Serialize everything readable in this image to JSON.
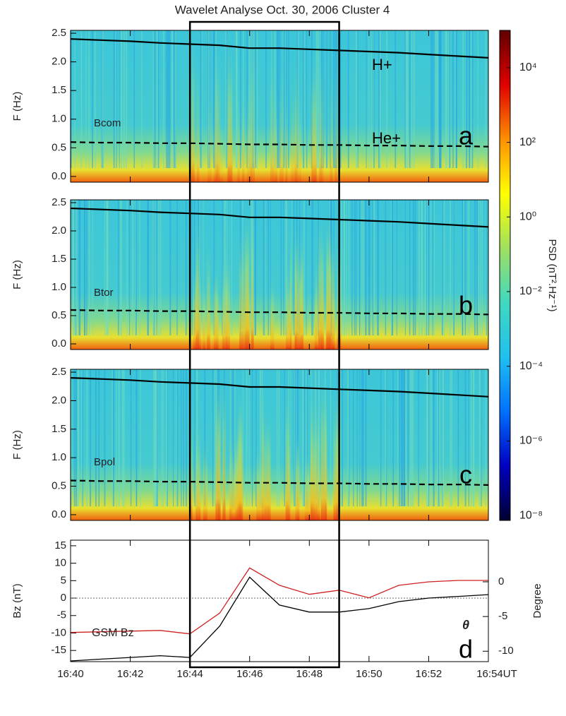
{
  "title": "Wavelet Analyse   Oct. 30, 2006   Cluster 4",
  "chart_data": [
    {
      "type": "spectrogram",
      "panel_label": "a",
      "component": "Bcom",
      "ylabel": "F (Hz)",
      "annotations": [
        "H+",
        "He+"
      ],
      "x": [
        "16:40",
        "16:41",
        "16:42",
        "16:43",
        "16:44",
        "16:45",
        "16:46",
        "16:47",
        "16:48",
        "16:49",
        "16:50",
        "16:51",
        "16:52",
        "16:53",
        "16:54"
      ],
      "series": [
        {
          "name": "H+",
          "color": "#000000",
          "style": "solid",
          "values": [
            2.4,
            2.38,
            2.36,
            2.33,
            2.31,
            2.29,
            2.24,
            2.24,
            2.22,
            2.2,
            2.18,
            2.16,
            2.13,
            2.1,
            2.07
          ]
        },
        {
          "name": "He+",
          "color": "#000000",
          "style": "dashed",
          "values": [
            0.6,
            0.59,
            0.59,
            0.58,
            0.58,
            0.57,
            0.56,
            0.56,
            0.55,
            0.55,
            0.54,
            0.54,
            0.53,
            0.53,
            0.52
          ]
        }
      ],
      "ylim": [
        -0.1,
        2.55
      ],
      "yticks": [
        {
          "value": 0,
          "label": "0.0"
        },
        0.5,
        {
          "value": 1,
          "label": "1.0"
        },
        1.5,
        {
          "value": 2,
          "label": "2.0"
        },
        2.5
      ]
    },
    {
      "type": "spectrogram",
      "panel_label": "b",
      "component": "Btor",
      "ylabel": "F (Hz)",
      "x": [
        "16:40",
        "16:41",
        "16:42",
        "16:43",
        "16:44",
        "16:45",
        "16:46",
        "16:47",
        "16:48",
        "16:49",
        "16:50",
        "16:51",
        "16:52",
        "16:53",
        "16:54"
      ],
      "series": [
        {
          "name": "H+",
          "color": "#000000",
          "style": "solid",
          "values": [
            2.4,
            2.38,
            2.36,
            2.33,
            2.31,
            2.29,
            2.24,
            2.24,
            2.22,
            2.2,
            2.18,
            2.16,
            2.13,
            2.1,
            2.07
          ]
        },
        {
          "name": "He+",
          "color": "#000000",
          "style": "dashed",
          "values": [
            0.6,
            0.59,
            0.59,
            0.58,
            0.58,
            0.57,
            0.56,
            0.56,
            0.55,
            0.55,
            0.54,
            0.54,
            0.53,
            0.53,
            0.52
          ]
        }
      ],
      "ylim": [
        -0.1,
        2.55
      ],
      "yticks": [
        {
          "value": 0,
          "label": "0.0"
        },
        0.5,
        {
          "value": 1,
          "label": "1.0"
        },
        1.5,
        {
          "value": 2,
          "label": "2.0"
        },
        2.5
      ]
    },
    {
      "type": "spectrogram",
      "panel_label": "c",
      "component": "Bpol",
      "ylabel": "F (Hz)",
      "x": [
        "16:40",
        "16:41",
        "16:42",
        "16:43",
        "16:44",
        "16:45",
        "16:46",
        "16:47",
        "16:48",
        "16:49",
        "16:50",
        "16:51",
        "16:52",
        "16:53",
        "16:54"
      ],
      "series": [
        {
          "name": "H+",
          "color": "#000000",
          "style": "solid",
          "values": [
            2.4,
            2.38,
            2.36,
            2.33,
            2.31,
            2.29,
            2.24,
            2.24,
            2.22,
            2.2,
            2.18,
            2.16,
            2.13,
            2.1,
            2.07
          ]
        },
        {
          "name": "He+",
          "color": "#000000",
          "style": "dashed",
          "values": [
            0.6,
            0.59,
            0.59,
            0.58,
            0.58,
            0.57,
            0.56,
            0.56,
            0.55,
            0.55,
            0.54,
            0.54,
            0.53,
            0.53,
            0.52
          ]
        }
      ],
      "ylim": [
        -0.1,
        2.55
      ],
      "yticks": [
        {
          "value": 0,
          "label": "0.0"
        },
        0.5,
        {
          "value": 1,
          "label": "1.0"
        },
        1.5,
        {
          "value": 2,
          "label": "2.0"
        },
        2.5
      ]
    },
    {
      "type": "line",
      "panel_label": "d",
      "ylabel": "Bz (nT)",
      "y2label": "Degree",
      "x": [
        "16:40",
        "16:41",
        "16:42",
        "16:43",
        "16:44",
        "16:45",
        "16:46",
        "16:47",
        "16:48",
        "16:49",
        "16:50",
        "16:51",
        "16:52",
        "16:53",
        "16:54"
      ],
      "series": [
        {
          "name": "GSM Bz",
          "color": "#000000",
          "values": [
            -18,
            -17.5,
            -17,
            -16.5,
            -17,
            -8,
            6,
            -2,
            -4,
            -4,
            -3,
            -1,
            0,
            0.5,
            1
          ]
        },
        {
          "name": "θ",
          "color": "#d02020",
          "axis": "y2",
          "values": [
            -7.3,
            -7.2,
            -7.1,
            -7,
            -7.5,
            -4.5,
            2,
            -0.5,
            -1.8,
            -1.2,
            -2.3,
            -0.5,
            0,
            0.2,
            0.2
          ]
        }
      ],
      "ylim": [
        -18.2,
        16.6
      ],
      "yticks": [
        -15,
        -10,
        -5,
        0,
        5,
        10,
        15
      ],
      "y2lim": [
        -11.5,
        6
      ],
      "y2ticks": [
        -10,
        -5,
        0
      ],
      "hline": 0,
      "xlim": [
        "16:40",
        "16:54"
      ],
      "xticks": [
        "16:40",
        "16:42",
        "16:44",
        "16:46",
        "16:48",
        "16:50",
        "16:52",
        {
          "value": "16:54",
          "label": "16:54UT"
        }
      ],
      "highlight": [
        "16:44",
        "16:49"
      ]
    },
    {
      "type": "colorbar",
      "label": "PSD (nT².Hz⁻¹)",
      "scale": "log",
      "lim": [
        7.4e-09,
        100000.0
      ],
      "colors": [
        "#000033",
        "#0000c0",
        "#0070ff",
        "#20c0f0",
        "#40d8c0",
        "#a0e060",
        "#ffff00",
        "#ff9000",
        "#e00000",
        "#600000"
      ],
      "ticks": [
        {
          "value": 1e-08,
          "label": "10⁻⁸"
        },
        {
          "value": 1e-06,
          "label": "10⁻⁶"
        },
        {
          "value": 0.0001,
          "label": "10⁻⁴"
        },
        {
          "value": 0.01,
          "label": "10⁻²"
        },
        {
          "value": 1,
          "label": "10⁰"
        },
        {
          "value": 100,
          "label": "10²"
        },
        {
          "value": 10000.0,
          "label": "10⁴"
        }
      ]
    }
  ]
}
